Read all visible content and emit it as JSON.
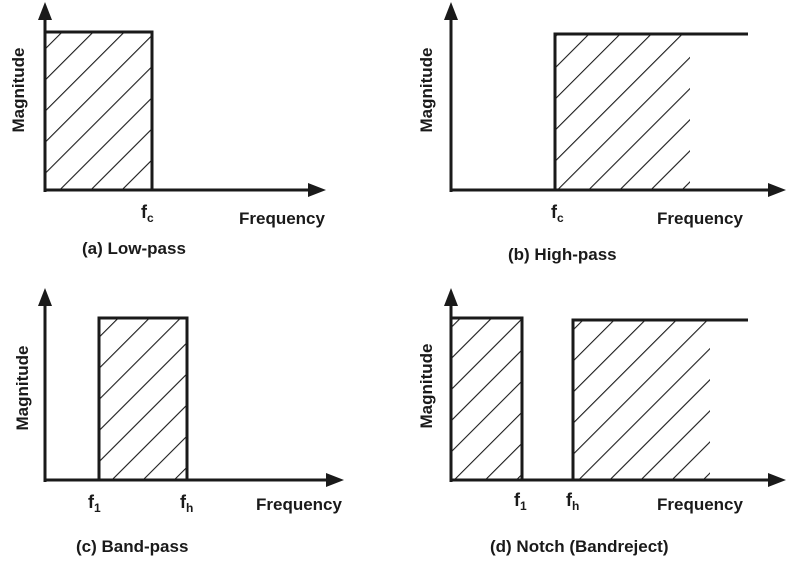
{
  "diagram": {
    "panels": [
      {
        "id": "low-pass",
        "ylabel": "Magnitude",
        "xlabel": "Frequency",
        "caption": "(a) Low-pass",
        "ticks": [
          {
            "base": "f",
            "sub": "c"
          }
        ]
      },
      {
        "id": "high-pass",
        "ylabel": "Magnitude",
        "xlabel": "Frequency",
        "caption": "(b) High-pass",
        "ticks": [
          {
            "base": "f",
            "sub": "c"
          }
        ]
      },
      {
        "id": "band-pass",
        "ylabel": "Magnitude",
        "xlabel": "Frequency",
        "caption": "(c) Band-pass",
        "ticks": [
          {
            "base": "f",
            "sub": "1"
          },
          {
            "base": "f",
            "sub": "h"
          }
        ]
      },
      {
        "id": "notch",
        "ylabel": "Magnitude",
        "xlabel": "Frequency",
        "caption": "(d) Notch (Bandreject)",
        "ticks": [
          {
            "base": "f",
            "sub": "1"
          },
          {
            "base": "f",
            "sub": "h"
          }
        ]
      }
    ],
    "colors": {
      "ink": "#1a1a1a",
      "background": "#ffffff"
    }
  }
}
